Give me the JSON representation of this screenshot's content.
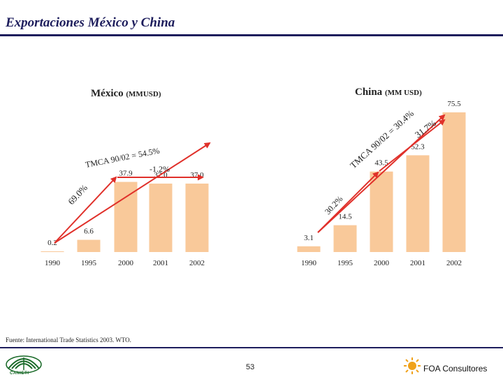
{
  "header": {
    "title": "Exportaciones México y China"
  },
  "footer": {
    "source": "Fuente: International Trade Statistics 2003. WTO.",
    "page_number": "53",
    "brand_left": "CANIETI",
    "brand_right": "FOA Consultores"
  },
  "colors": {
    "bar": "#f9c99a",
    "arrow": "#e0302a",
    "rule": "#1d1d5c"
  },
  "chart_data": [
    {
      "type": "bar",
      "title": "México",
      "title_unit": "(MMUSD)",
      "categories": [
        "1990",
        "1995",
        "2000",
        "2001",
        "2002"
      ],
      "values": [
        0.2,
        6.6,
        37.9,
        37.0,
        37.0
      ],
      "value_labels": [
        "0.2",
        "6.6",
        "37.9",
        "37.0",
        "37.0"
      ],
      "annotations": [
        "69.0%",
        "TMCA 90/02 = 54.5%",
        "-1.2%"
      ]
    },
    {
      "type": "bar",
      "title": "China",
      "title_unit": "(MM USD)",
      "categories": [
        "1990",
        "1995",
        "2000",
        "2001",
        "2002"
      ],
      "values": [
        3.1,
        14.5,
        43.5,
        52.3,
        75.5
      ],
      "value_labels": [
        "3.1",
        "14.5",
        "43.5",
        "52.3",
        "75.5"
      ],
      "annotations": [
        "30.2%",
        "TMCA 90/02 = 30.4%",
        "31.7%"
      ]
    }
  ]
}
